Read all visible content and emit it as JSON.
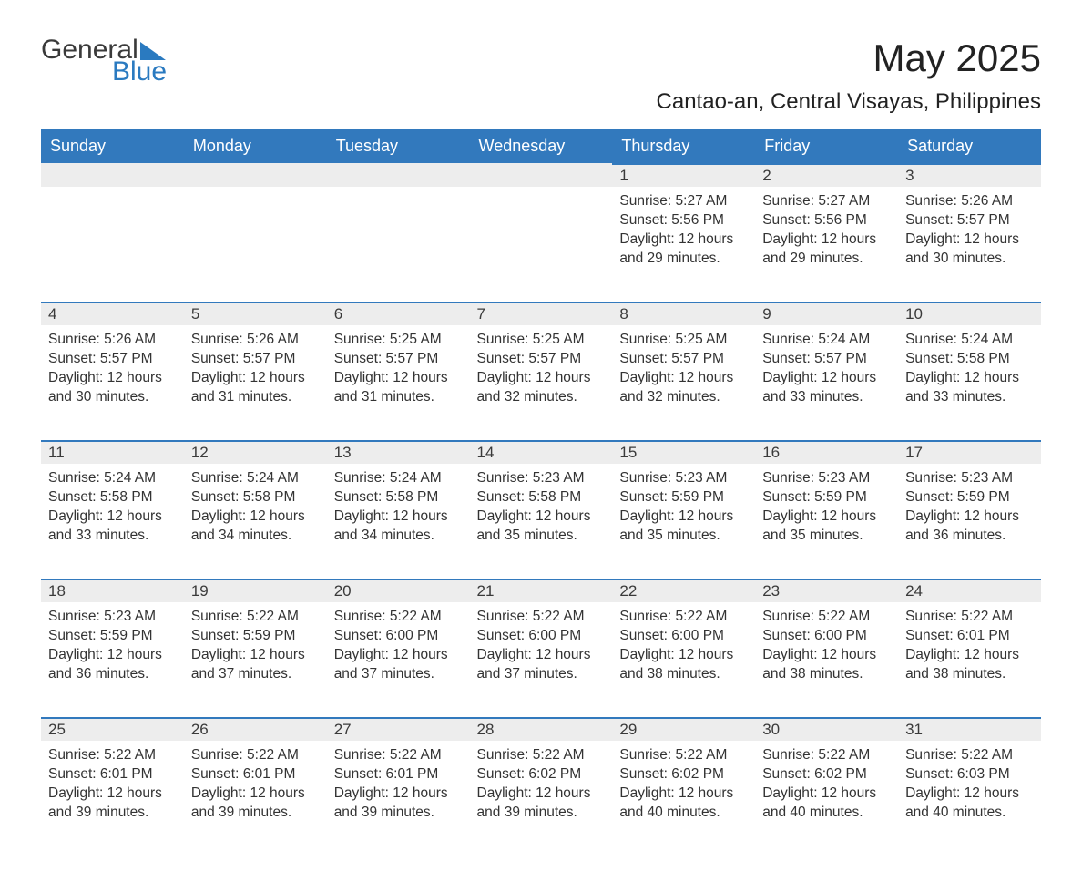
{
  "logo": {
    "word1": "General",
    "word2": "Blue"
  },
  "title": "May 2025",
  "location": "Cantao-an, Central Visayas, Philippines",
  "colors": {
    "header_bg": "#3279bd",
    "header_text": "#ffffff",
    "daynum_bg": "#ededed",
    "daynum_border": "#3279bd",
    "text": "#333333",
    "logo_blue": "#2a7ac0",
    "logo_gray": "#3a3a3a",
    "background": "#ffffff"
  },
  "fonts": {
    "title_size_pt": 32,
    "location_size_pt": 18,
    "header_size_pt": 14,
    "daynum_size_pt": 13,
    "body_size_pt": 12
  },
  "weekdays": [
    "Sunday",
    "Monday",
    "Tuesday",
    "Wednesday",
    "Thursday",
    "Friday",
    "Saturday"
  ],
  "weeks": [
    [
      null,
      null,
      null,
      null,
      {
        "d": "1",
        "rise": "5:27 AM",
        "set": "5:56 PM",
        "dl": "12 hours and 29 minutes."
      },
      {
        "d": "2",
        "rise": "5:27 AM",
        "set": "5:56 PM",
        "dl": "12 hours and 29 minutes."
      },
      {
        "d": "3",
        "rise": "5:26 AM",
        "set": "5:57 PM",
        "dl": "12 hours and 30 minutes."
      }
    ],
    [
      {
        "d": "4",
        "rise": "5:26 AM",
        "set": "5:57 PM",
        "dl": "12 hours and 30 minutes."
      },
      {
        "d": "5",
        "rise": "5:26 AM",
        "set": "5:57 PM",
        "dl": "12 hours and 31 minutes."
      },
      {
        "d": "6",
        "rise": "5:25 AM",
        "set": "5:57 PM",
        "dl": "12 hours and 31 minutes."
      },
      {
        "d": "7",
        "rise": "5:25 AM",
        "set": "5:57 PM",
        "dl": "12 hours and 32 minutes."
      },
      {
        "d": "8",
        "rise": "5:25 AM",
        "set": "5:57 PM",
        "dl": "12 hours and 32 minutes."
      },
      {
        "d": "9",
        "rise": "5:24 AM",
        "set": "5:57 PM",
        "dl": "12 hours and 33 minutes."
      },
      {
        "d": "10",
        "rise": "5:24 AM",
        "set": "5:58 PM",
        "dl": "12 hours and 33 minutes."
      }
    ],
    [
      {
        "d": "11",
        "rise": "5:24 AM",
        "set": "5:58 PM",
        "dl": "12 hours and 33 minutes."
      },
      {
        "d": "12",
        "rise": "5:24 AM",
        "set": "5:58 PM",
        "dl": "12 hours and 34 minutes."
      },
      {
        "d": "13",
        "rise": "5:24 AM",
        "set": "5:58 PM",
        "dl": "12 hours and 34 minutes."
      },
      {
        "d": "14",
        "rise": "5:23 AM",
        "set": "5:58 PM",
        "dl": "12 hours and 35 minutes."
      },
      {
        "d": "15",
        "rise": "5:23 AM",
        "set": "5:59 PM",
        "dl": "12 hours and 35 minutes."
      },
      {
        "d": "16",
        "rise": "5:23 AM",
        "set": "5:59 PM",
        "dl": "12 hours and 35 minutes."
      },
      {
        "d": "17",
        "rise": "5:23 AM",
        "set": "5:59 PM",
        "dl": "12 hours and 36 minutes."
      }
    ],
    [
      {
        "d": "18",
        "rise": "5:23 AM",
        "set": "5:59 PM",
        "dl": "12 hours and 36 minutes."
      },
      {
        "d": "19",
        "rise": "5:22 AM",
        "set": "5:59 PM",
        "dl": "12 hours and 37 minutes."
      },
      {
        "d": "20",
        "rise": "5:22 AM",
        "set": "6:00 PM",
        "dl": "12 hours and 37 minutes."
      },
      {
        "d": "21",
        "rise": "5:22 AM",
        "set": "6:00 PM",
        "dl": "12 hours and 37 minutes."
      },
      {
        "d": "22",
        "rise": "5:22 AM",
        "set": "6:00 PM",
        "dl": "12 hours and 38 minutes."
      },
      {
        "d": "23",
        "rise": "5:22 AM",
        "set": "6:00 PM",
        "dl": "12 hours and 38 minutes."
      },
      {
        "d": "24",
        "rise": "5:22 AM",
        "set": "6:01 PM",
        "dl": "12 hours and 38 minutes."
      }
    ],
    [
      {
        "d": "25",
        "rise": "5:22 AM",
        "set": "6:01 PM",
        "dl": "12 hours and 39 minutes."
      },
      {
        "d": "26",
        "rise": "5:22 AM",
        "set": "6:01 PM",
        "dl": "12 hours and 39 minutes."
      },
      {
        "d": "27",
        "rise": "5:22 AM",
        "set": "6:01 PM",
        "dl": "12 hours and 39 minutes."
      },
      {
        "d": "28",
        "rise": "5:22 AM",
        "set": "6:02 PM",
        "dl": "12 hours and 39 minutes."
      },
      {
        "d": "29",
        "rise": "5:22 AM",
        "set": "6:02 PM",
        "dl": "12 hours and 40 minutes."
      },
      {
        "d": "30",
        "rise": "5:22 AM",
        "set": "6:02 PM",
        "dl": "12 hours and 40 minutes."
      },
      {
        "d": "31",
        "rise": "5:22 AM",
        "set": "6:03 PM",
        "dl": "12 hours and 40 minutes."
      }
    ]
  ],
  "labels": {
    "sunrise": "Sunrise: ",
    "sunset": "Sunset: ",
    "daylight": "Daylight: "
  }
}
